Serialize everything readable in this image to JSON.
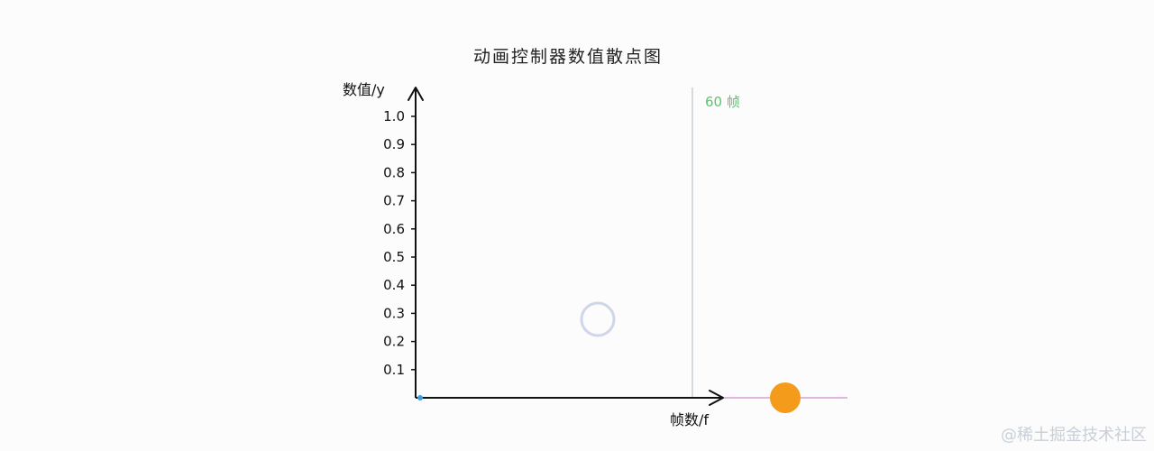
{
  "chart_data": {
    "type": "scatter",
    "title": "动画控制器数值散点图",
    "ylabel": "数值/y",
    "xlabel": "帧数/f",
    "y_ticks": [
      "0.1",
      "0.2",
      "0.3",
      "0.4",
      "0.5",
      "0.6",
      "0.7",
      "0.8",
      "0.9",
      "1.0"
    ],
    "ylim": [
      0,
      1.0
    ],
    "xlim": [
      0,
      60
    ],
    "frame_marker": {
      "frame": 60,
      "label": "60 帧"
    },
    "series": [
      {
        "values": [
          {
            "x": 0,
            "y": 0
          }
        ]
      }
    ],
    "colors": {
      "axis": "#111111",
      "progress_line": "#5a2a6a",
      "marker_line": "#c7ced4",
      "marker_label": "#5cc46e",
      "ghost_circle": "#cfd6ea",
      "active_dot": "#f59b1c",
      "track_line": "#d8a0d8",
      "start_point": "#3aa0e6"
    }
  },
  "watermark": "@稀土掘金技术社区"
}
